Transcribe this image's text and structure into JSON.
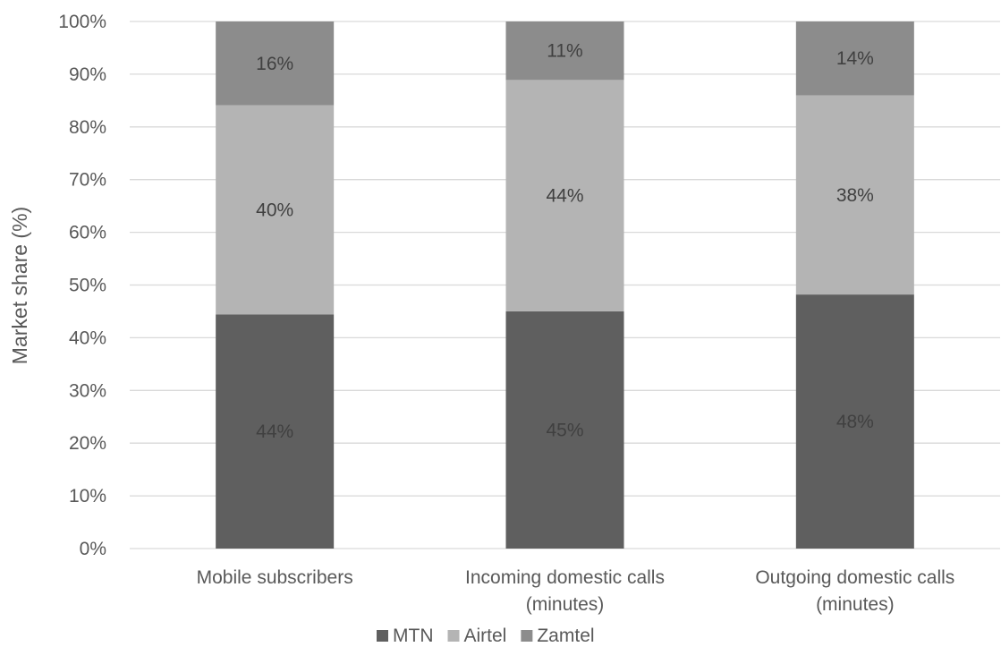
{
  "chart_data": {
    "type": "bar",
    "stacked": true,
    "percent_stacked": true,
    "title": "",
    "xlabel": "",
    "ylabel": "Market share (%)",
    "ylim": [
      0,
      100
    ],
    "yticks": [
      "0%",
      "10%",
      "20%",
      "30%",
      "40%",
      "50%",
      "60%",
      "70%",
      "80%",
      "90%",
      "100%"
    ],
    "grid": true,
    "legend_position": "bottom",
    "categories": [
      [
        "Mobile subscribers"
      ],
      [
        "Incoming domestic calls",
        "(minutes)"
      ],
      [
        "Outgoing domestic calls",
        "(minutes)"
      ]
    ],
    "series": [
      {
        "name": "MTN",
        "color": "#5f5f5f",
        "values": [
          44.4,
          45.0,
          48.2
        ],
        "labels": [
          "44%",
          "45%",
          "48%"
        ]
      },
      {
        "name": "Airtel",
        "color": "#b4b4b4",
        "values": [
          39.7,
          43.9,
          37.8
        ],
        "labels": [
          "40%",
          "44%",
          "38%"
        ]
      },
      {
        "name": "Zamtel",
        "color": "#8c8c8c",
        "values": [
          15.9,
          11.1,
          14.0
        ],
        "labels": [
          "16%",
          "11%",
          "14%"
        ]
      }
    ]
  }
}
